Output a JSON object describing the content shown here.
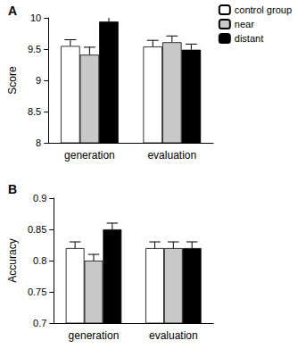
{
  "chart_data": [
    {
      "type": "bar",
      "title": "A",
      "y_label": "Score",
      "categories": [
        "generation",
        "evaluation"
      ],
      "series": [
        {
          "name": "control group",
          "color": "#ffffff",
          "values": [
            9.55,
            9.54
          ],
          "errors": [
            0.1,
            0.1
          ]
        },
        {
          "name": "near",
          "color": "#c8c8c8",
          "values": [
            9.41,
            9.61
          ],
          "errors": [
            0.12,
            0.1
          ]
        },
        {
          "name": "distant",
          "color": "#000000",
          "values": [
            9.94,
            9.49
          ],
          "errors": [
            0.08,
            0.09
          ]
        }
      ],
      "ylim": [
        8,
        10
      ],
      "yticks": [
        8,
        8.5,
        9,
        9.5,
        10
      ],
      "grid": false,
      "legend": "right"
    },
    {
      "type": "bar",
      "title": "B",
      "y_label": "Accuracy",
      "categories": [
        "generation",
        "evaluation"
      ],
      "series": [
        {
          "name": "control group",
          "color": "#ffffff",
          "values": [
            0.82,
            0.82
          ],
          "errors": [
            0.01,
            0.01
          ]
        },
        {
          "name": "near",
          "color": "#c8c8c8",
          "values": [
            0.8,
            0.82
          ],
          "errors": [
            0.01,
            0.01
          ]
        },
        {
          "name": "distant",
          "color": "#000000",
          "values": [
            0.85,
            0.82
          ],
          "errors": [
            0.01,
            0.01
          ]
        }
      ],
      "ylim": [
        0.7,
        0.9
      ],
      "yticks": [
        0.7,
        0.75,
        0.8,
        0.85,
        0.9
      ],
      "grid": false
    }
  ]
}
